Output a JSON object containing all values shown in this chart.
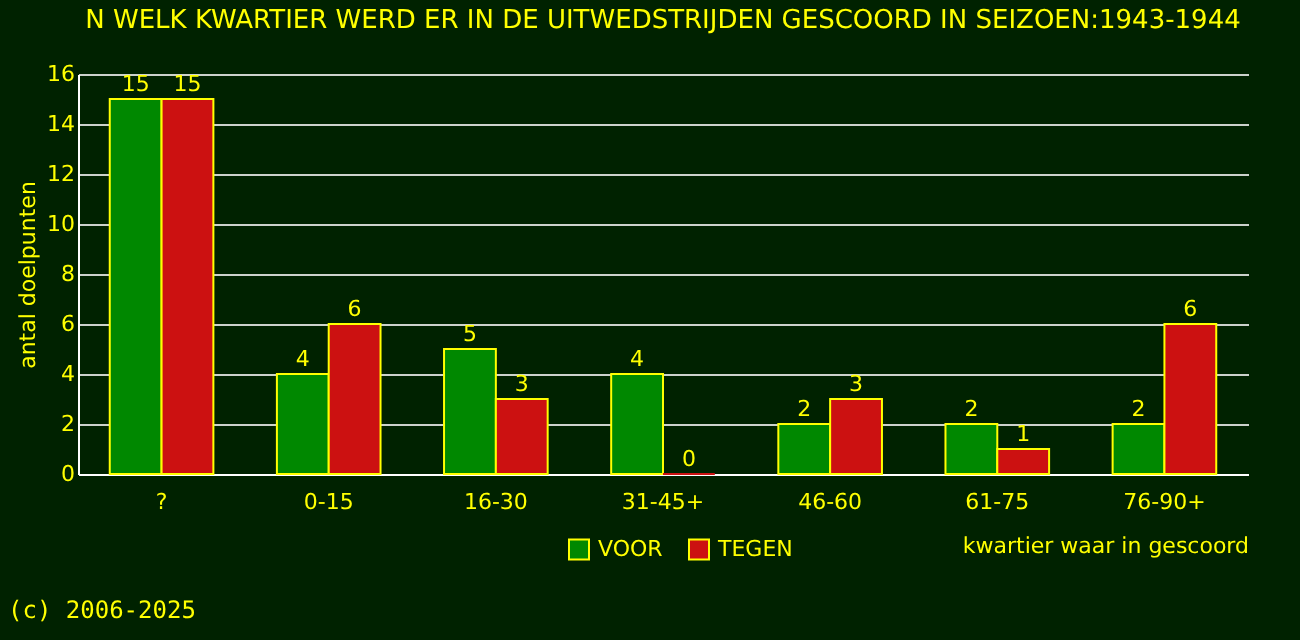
{
  "chart_data": {
    "type": "bar",
    "title": "N WELK KWARTIER WERD ER IN DE UITWEDSTRIJDEN GESCOORD IN SEIZOEN:1943-1944",
    "xlabel": "kwartier waar in gescoord",
    "ylabel": "antal doelpunten",
    "categories": [
      "?",
      "0-15",
      "16-30",
      "31-45+",
      "46-60",
      "61-75",
      "76-90+"
    ],
    "series": [
      {
        "name": "VOOR",
        "color": "#008800",
        "values": [
          15,
          4,
          5,
          4,
          2,
          2,
          2
        ]
      },
      {
        "name": "TEGEN",
        "color": "#cc1111",
        "values": [
          15,
          6,
          3,
          0,
          3,
          1,
          6
        ]
      }
    ],
    "ylim": [
      0,
      16
    ],
    "yticks": [
      0,
      2,
      4,
      6,
      8,
      10,
      12,
      14,
      16
    ],
    "grid": "y",
    "legend": "bottom",
    "data_labels": true,
    "annotations": [
      "(c) 2006-2025"
    ]
  }
}
